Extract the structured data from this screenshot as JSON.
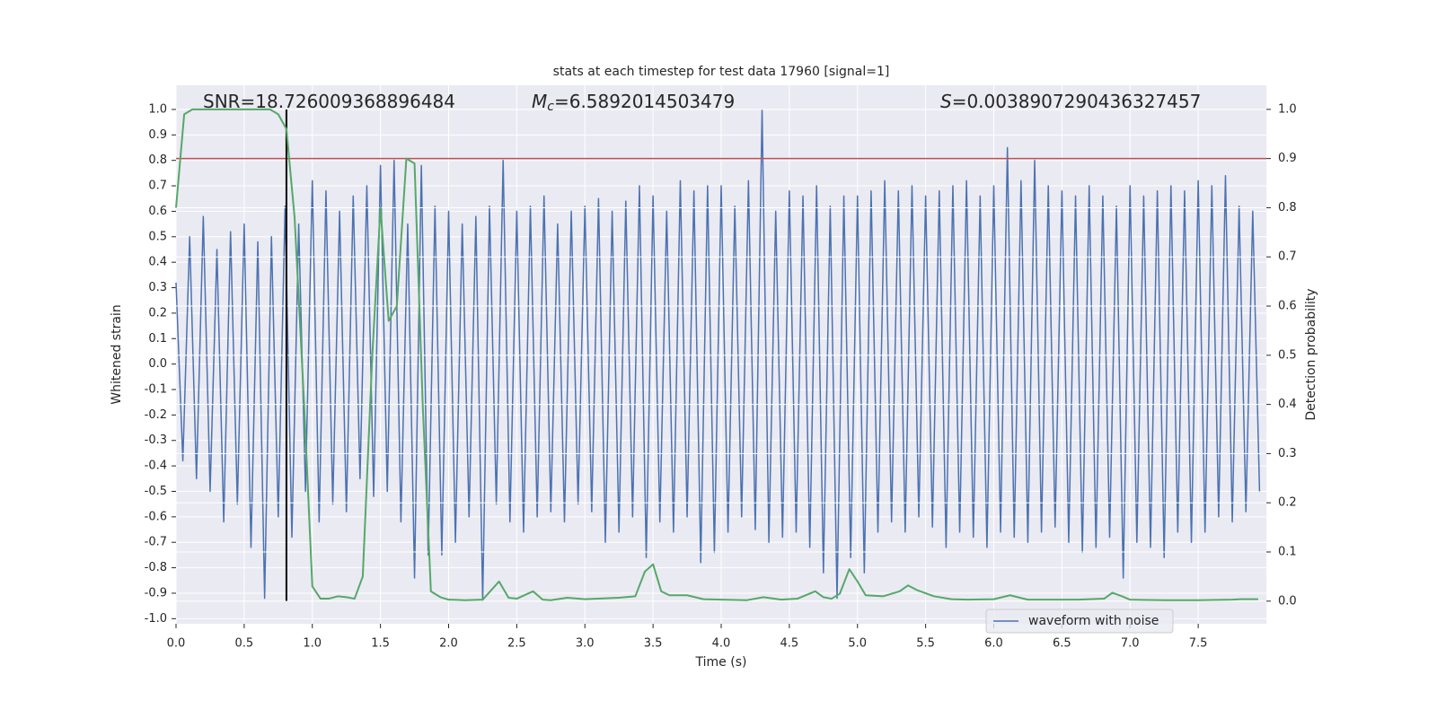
{
  "chart_data": {
    "type": "line",
    "title": "stats at each timestep for test data 17960 [signal=1]",
    "xlabel": "Time (s)",
    "ylabel": "Whitened strain",
    "y2label": "Detection probability",
    "grid": true,
    "xlim": [
      0,
      8.0
    ],
    "xticks": [
      {
        "value": 0,
        "label": "0.0"
      },
      0.5,
      {
        "value": 1,
        "label": "1.0"
      },
      1.5,
      {
        "value": 2,
        "label": "2.0"
      },
      2.5,
      {
        "value": 3,
        "label": "3.0"
      },
      3.5,
      {
        "value": 4,
        "label": "4.0"
      },
      4.5,
      {
        "value": 5,
        "label": "5.0"
      },
      5.5,
      {
        "value": 6,
        "label": "6.0"
      },
      6.5,
      {
        "value": 7,
        "label": "7.0"
      },
      7.5
    ],
    "ylim": [
      -1.02,
      1.095
    ],
    "yticks": [
      {
        "value": -1,
        "label": "-1.0"
      },
      -0.9,
      -0.8,
      -0.7,
      -0.6,
      -0.5,
      -0.4,
      -0.3,
      -0.2,
      -0.1,
      {
        "value": 0,
        "label": "0.0"
      },
      0.1,
      0.2,
      0.3,
      0.4,
      0.5,
      0.6,
      0.7,
      0.8,
      0.9,
      {
        "value": 1,
        "label": "1.0"
      }
    ],
    "y2lim": [
      -0.046,
      1.049
    ],
    "y2ticks": [
      {
        "value": 0,
        "label": "0.0"
      },
      0.1,
      0.2,
      0.3,
      0.4,
      0.5,
      0.6,
      0.7,
      0.8,
      0.9,
      {
        "value": 1,
        "label": "1.0"
      }
    ],
    "annotations": [
      {
        "text": "SNR=18.726009368896484"
      },
      {
        "symbol": "M",
        "sub": "c",
        "text": "=6.5892014503479"
      },
      {
        "symbol": "S",
        "text": "=0.0038907290436327457"
      }
    ],
    "series": [
      {
        "name": "waveform with noise",
        "color": "#4c72b0",
        "x": [
          0,
          0.05,
          0.1,
          0.15,
          0.2,
          0.25,
          0.3,
          0.35,
          0.4,
          0.45,
          0.5,
          0.55,
          0.6,
          0.65,
          0.7,
          0.75,
          0.8,
          0.85,
          0.9,
          0.95,
          1,
          1.05,
          1.1,
          1.15,
          1.2,
          1.25,
          1.3,
          1.35,
          1.4,
          1.45,
          1.5,
          1.55,
          1.6,
          1.65,
          1.7,
          1.75,
          1.8,
          1.85,
          1.9,
          1.95,
          2,
          2.05,
          2.1,
          2.15,
          2.2,
          2.25,
          2.3,
          2.35,
          2.4,
          2.45,
          2.5,
          2.55,
          2.6,
          2.65,
          2.7,
          2.75,
          2.8,
          2.85,
          2.9,
          2.95,
          3,
          3.05,
          3.1,
          3.15,
          3.2,
          3.25,
          3.3,
          3.35,
          3.4,
          3.45,
          3.5,
          3.55,
          3.6,
          3.65,
          3.7,
          3.75,
          3.8,
          3.85,
          3.9,
          3.95,
          4,
          4.05,
          4.1,
          4.15,
          4.2,
          4.25,
          4.3,
          4.35,
          4.4,
          4.45,
          4.5,
          4.55,
          4.6,
          4.65,
          4.7,
          4.75,
          4.8,
          4.85,
          4.9,
          4.95,
          5,
          5.05,
          5.1,
          5.15,
          5.2,
          5.25,
          5.3,
          5.35,
          5.4,
          5.45,
          5.5,
          5.55,
          5.6,
          5.65,
          5.7,
          5.75,
          5.8,
          5.85,
          5.9,
          5.95,
          6,
          6.05,
          6.1,
          6.15,
          6.2,
          6.25,
          6.3,
          6.35,
          6.4,
          6.45,
          6.5,
          6.55,
          6.6,
          6.65,
          6.7,
          6.75,
          6.8,
          6.85,
          6.9,
          6.95,
          7,
          7.05,
          7.1,
          7.15,
          7.2,
          7.25,
          7.3,
          7.35,
          7.4,
          7.45,
          7.5,
          7.55,
          7.6,
          7.65,
          7.7,
          7.75,
          7.8,
          7.85,
          7.9,
          7.95
        ],
        "values": [
          0.32,
          -0.38,
          0.5,
          -0.45,
          0.58,
          -0.5,
          0.45,
          -0.62,
          0.52,
          -0.55,
          0.55,
          -0.72,
          0.48,
          -0.92,
          0.5,
          -0.6,
          0.62,
          -0.68,
          0.55,
          -0.5,
          0.72,
          -0.62,
          0.68,
          -0.55,
          0.6,
          -0.58,
          0.66,
          -0.45,
          0.7,
          -0.52,
          0.78,
          -0.5,
          0.8,
          -0.62,
          0.55,
          -0.84,
          0.78,
          -0.75,
          0.62,
          -0.75,
          0.6,
          -0.7,
          0.55,
          -0.6,
          0.58,
          -0.93,
          0.62,
          -0.55,
          0.8,
          -0.62,
          0.6,
          -0.66,
          0.62,
          -0.6,
          0.66,
          -0.58,
          0.55,
          -0.62,
          0.6,
          -0.55,
          0.62,
          -0.58,
          0.65,
          -0.7,
          0.6,
          -0.66,
          0.64,
          -0.6,
          0.7,
          -0.76,
          0.66,
          -0.62,
          0.6,
          -0.66,
          0.72,
          -0.6,
          0.68,
          -0.78,
          0.7,
          -0.74,
          0.7,
          -0.66,
          0.62,
          -0.6,
          0.72,
          -0.65,
          1.0,
          -0.7,
          0.6,
          -0.68,
          0.68,
          -0.66,
          0.66,
          -0.72,
          0.7,
          -0.82,
          0.62,
          -0.92,
          0.66,
          -0.76,
          0.66,
          -0.82,
          0.68,
          -0.66,
          0.72,
          -0.62,
          0.68,
          -0.66,
          0.7,
          -0.6,
          0.66,
          -0.64,
          0.68,
          -0.72,
          0.7,
          -0.66,
          0.72,
          -0.68,
          0.66,
          -0.72,
          0.7,
          -0.66,
          0.85,
          -0.68,
          0.72,
          -0.7,
          0.8,
          -0.66,
          0.7,
          -0.64,
          0.68,
          -0.7,
          0.66,
          -0.74,
          0.7,
          -0.72,
          0.66,
          -0.68,
          0.62,
          -0.84,
          0.7,
          -0.7,
          0.66,
          -0.72,
          0.68,
          -0.76,
          0.7,
          -0.66,
          0.68,
          -0.7,
          0.72,
          -0.66,
          0.7,
          -0.6,
          0.74,
          -0.62,
          0.62,
          -0.58,
          0.6,
          -0.5
        ]
      },
      {
        "color": "#55a868",
        "axis": "y2",
        "x": [
          0,
          0.06,
          0.12,
          0.19,
          0.25,
          0.31,
          0.37,
          0.44,
          0.5,
          0.56,
          0.62,
          0.69,
          0.75,
          0.81,
          0.87,
          0.94,
          1.0,
          1.06,
          1.12,
          1.19,
          1.25,
          1.31,
          1.37,
          1.44,
          1.5,
          1.56,
          1.62,
          1.69,
          1.75,
          1.81,
          1.87,
          1.94,
          2.0,
          2.12,
          2.25,
          2.37,
          2.44,
          2.5,
          2.62,
          2.69,
          2.75,
          2.87,
          3.0,
          3.25,
          3.37,
          3.44,
          3.5,
          3.56,
          3.62,
          3.75,
          3.87,
          4.0,
          4.19,
          4.31,
          4.44,
          4.56,
          4.69,
          4.75,
          4.81,
          4.87,
          4.94,
          5.0,
          5.06,
          5.19,
          5.31,
          5.37,
          5.44,
          5.56,
          5.69,
          5.81,
          6.0,
          6.12,
          6.25,
          6.44,
          6.62,
          6.81,
          6.87,
          6.94,
          7.0,
          7.25,
          7.5,
          7.75,
          7.81,
          7.94
        ],
        "values": [
          0.8,
          0.99,
          1.0,
          1.0,
          1.0,
          1.0,
          1.0,
          1.0,
          1.0,
          1.0,
          1.0,
          1.0,
          0.99,
          0.96,
          0.78,
          0.4,
          0.03,
          0.005,
          0.005,
          0.01,
          0.008,
          0.005,
          0.05,
          0.5,
          0.8,
          0.57,
          0.6,
          0.9,
          0.89,
          0.4,
          0.02,
          0.008,
          0.003,
          0.002,
          0.003,
          0.04,
          0.007,
          0.005,
          0.02,
          0.003,
          0.002,
          0.007,
          0.004,
          0.007,
          0.01,
          0.06,
          0.075,
          0.02,
          0.012,
          0.012,
          0.004,
          0.003,
          0.002,
          0.008,
          0.003,
          0.005,
          0.02,
          0.008,
          0.005,
          0.015,
          0.065,
          0.04,
          0.012,
          0.01,
          0.02,
          0.032,
          0.022,
          0.01,
          0.004,
          0.003,
          0.004,
          0.012,
          0.003,
          0.003,
          0.003,
          0.005,
          0.017,
          0.01,
          0.003,
          0.002,
          0.002,
          0.003,
          0.004,
          0.004
        ]
      }
    ],
    "hlines": [
      {
        "axis": "y2",
        "value": 0.9,
        "color": "#c44e52"
      }
    ],
    "vlines": [
      {
        "x": 0.81,
        "ymin": -0.93,
        "ymax": 1.0,
        "color": "#000000"
      }
    ]
  }
}
